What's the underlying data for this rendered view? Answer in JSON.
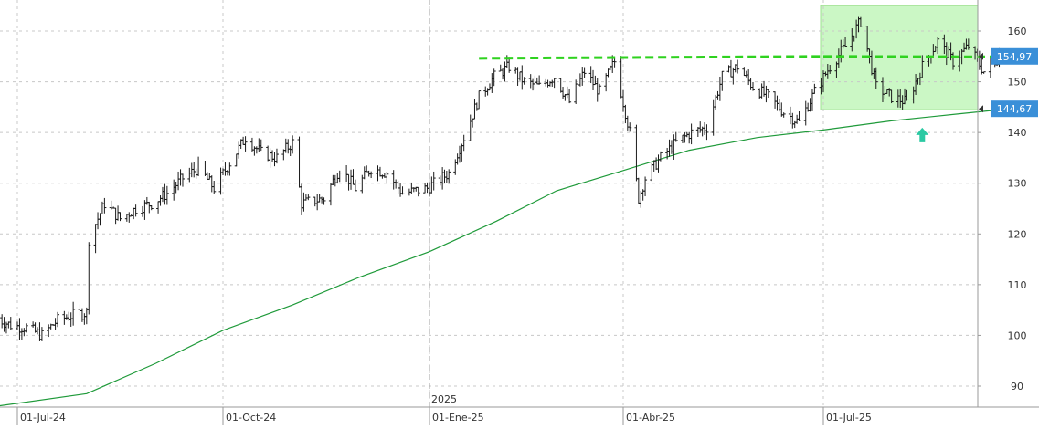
{
  "chart_data": {
    "type": "line",
    "subtype": "ohlc-bars",
    "x_ticks": [
      "01-Jul-24",
      "01-Oct-24",
      "01-Ene-25",
      "01-Abr-25",
      "01-Jul-25"
    ],
    "year_marker": "2025",
    "y_ticks": [
      90,
      100,
      110,
      120,
      130,
      140,
      150,
      160
    ],
    "ylim": [
      85,
      165
    ],
    "grid": true,
    "price_label": "154,97",
    "ma_label": "144,67",
    "resistance_level": 154.9,
    "highlight_zone": {
      "from": "01-Jul-25",
      "y_range": [
        144.5,
        165
      ]
    },
    "signal": {
      "type": "up-arrow",
      "date": "2025-08-15",
      "value": 139.5
    },
    "series": [
      {
        "style": "ohlc-bars",
        "points": [
          [
            "2024-06-21",
            103.5
          ],
          [
            "2024-06-28",
            102
          ],
          [
            "2024-07-05",
            101.5
          ],
          [
            "2024-07-12",
            100
          ],
          [
            "2024-07-19",
            103
          ],
          [
            "2024-07-26",
            104
          ],
          [
            "2024-08-01",
            104.5
          ],
          [
            "2024-08-02",
            119
          ],
          [
            "2024-08-09",
            126
          ],
          [
            "2024-08-16",
            123
          ],
          [
            "2024-08-23",
            125
          ],
          [
            "2024-08-30",
            126
          ],
          [
            "2024-09-06",
            128
          ],
          [
            "2024-09-13",
            131
          ],
          [
            "2024-09-20",
            133
          ],
          [
            "2024-09-27",
            129
          ],
          [
            "2024-10-04",
            134
          ],
          [
            "2024-10-11",
            139
          ],
          [
            "2024-10-18",
            136
          ],
          [
            "2024-10-25",
            135
          ],
          [
            "2024-11-01",
            138
          ],
          [
            "2024-11-05",
            126
          ],
          [
            "2024-11-15",
            127
          ],
          [
            "2024-11-22",
            133
          ],
          [
            "2024-11-29",
            129
          ],
          [
            "2024-12-06",
            133
          ],
          [
            "2024-12-13",
            132
          ],
          [
            "2024-12-20",
            128
          ],
          [
            "2024-12-31",
            129
          ],
          [
            "2025-01-10",
            132
          ],
          [
            "2025-01-17",
            139
          ],
          [
            "2025-01-24",
            147
          ],
          [
            "2025-01-31",
            151
          ],
          [
            "2025-02-07",
            153
          ],
          [
            "2025-02-14",
            150
          ],
          [
            "2025-02-21",
            149
          ],
          [
            "2025-02-28",
            151
          ],
          [
            "2025-03-07",
            146
          ],
          [
            "2025-03-14",
            152
          ],
          [
            "2025-03-21",
            148
          ],
          [
            "2025-03-28",
            154
          ],
          [
            "2025-04-04",
            140
          ],
          [
            "2025-04-08",
            127
          ],
          [
            "2025-04-11",
            131
          ],
          [
            "2025-04-18",
            135
          ],
          [
            "2025-04-25",
            138
          ],
          [
            "2025-05-02",
            140
          ],
          [
            "2025-05-09",
            141
          ],
          [
            "2025-05-16",
            151
          ],
          [
            "2025-05-23",
            153
          ],
          [
            "2025-05-30",
            149
          ],
          [
            "2025-06-06",
            147
          ],
          [
            "2025-06-13",
            144
          ],
          [
            "2025-06-20",
            142
          ],
          [
            "2025-06-27",
            148
          ],
          [
            "2025-07-04",
            153
          ],
          [
            "2025-07-11",
            157
          ],
          [
            "2025-07-18",
            162
          ],
          [
            "2025-07-25",
            149
          ],
          [
            "2025-08-01",
            147
          ],
          [
            "2025-08-08",
            146
          ],
          [
            "2025-08-15",
            153
          ],
          [
            "2025-08-22",
            158
          ],
          [
            "2025-08-29",
            154
          ],
          [
            "2025-09-05",
            157
          ],
          [
            "2025-09-12",
            152
          ],
          [
            "2025-09-19",
            155
          ]
        ]
      },
      {
        "style": "moving-average",
        "color": "#1f9a3a",
        "points": [
          [
            "2024-06-21",
            86
          ],
          [
            "2024-08-01",
            88.5
          ],
          [
            "2024-09-01",
            94.5
          ],
          [
            "2024-10-01",
            101
          ],
          [
            "2024-11-01",
            106
          ],
          [
            "2024-12-01",
            111.5
          ],
          [
            "2025-01-01",
            116.5
          ],
          [
            "2025-02-01",
            122.5
          ],
          [
            "2025-03-01",
            128.5
          ],
          [
            "2025-04-01",
            132.5
          ],
          [
            "2025-05-01",
            136.5
          ],
          [
            "2025-06-01",
            139
          ],
          [
            "2025-07-01",
            140.5
          ],
          [
            "2025-08-01",
            142.3
          ],
          [
            "2025-09-01",
            143.7
          ],
          [
            "2025-09-24",
            144.7
          ]
        ]
      }
    ]
  }
}
